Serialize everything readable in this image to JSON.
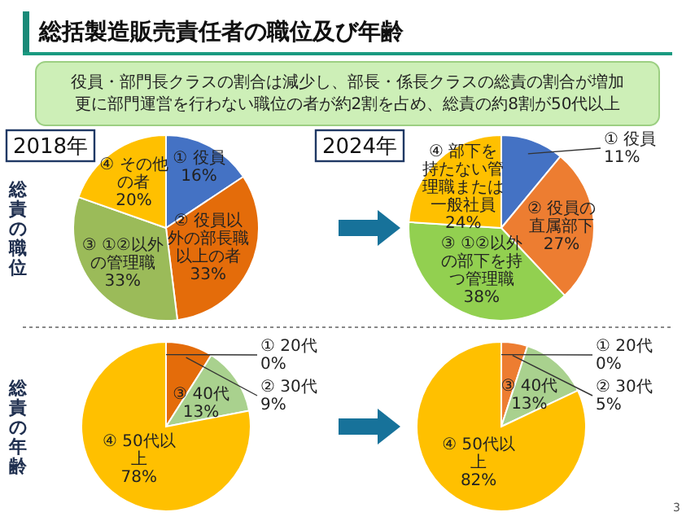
{
  "chart_data": [
    {
      "type": "pie",
      "title": "2018年",
      "ylabel": "総責の職位",
      "annotations": [
        "総括製造販売責任者の職位及び年齢",
        "役員・部門長クラスの割合は減少し、部長・係長クラスの総責の割合が増加",
        "更に部門運営を行わない職位の者が約2割を占め、総責の約8割が50代以上"
      ],
      "categories": [
        "① 役員",
        "② 役員以外の部長職以上の者",
        "③ ①②以外の管理職",
        "④ その他の者"
      ],
      "values": [
        16,
        33,
        33,
        20
      ],
      "value_labels": [
        "16%",
        "33%",
        "33%",
        "20%"
      ],
      "colors": [
        "#4472c4",
        "#e46c0a",
        "#9bbb59",
        "#ffc000"
      ]
    },
    {
      "type": "pie",
      "title": "2024年",
      "categories": [
        "① 役員",
        "② 役員の直属部下",
        "③ ①②以外の部下を持つ管理職",
        "④ 部下を持たない管理職または一般社員"
      ],
      "values": [
        11,
        27,
        38,
        24
      ],
      "value_labels": [
        "11%",
        "27%",
        "38%",
        "24%"
      ],
      "colors": [
        "#4472c4",
        "#ed7d31",
        "#92d050",
        "#ffc000"
      ]
    },
    {
      "type": "pie",
      "ylabel": "総責の年齢",
      "categories": [
        "① 20代",
        "② 30代",
        "③ 40代",
        "④ 50代以上"
      ],
      "values": [
        0,
        9,
        13,
        78
      ],
      "value_labels": [
        "0%",
        "9%",
        "13%",
        "78%"
      ],
      "colors": [
        "#4472c4",
        "#e46c0a",
        "#a9d18e",
        "#ffc000"
      ]
    },
    {
      "type": "pie",
      "annotations": [
        "3"
      ],
      "categories": [
        "① 20代",
        "② 30代",
        "③ 40代",
        "④ 50代以上"
      ],
      "values": [
        0,
        5,
        13,
        82
      ],
      "value_labels": [
        "0%",
        "5%",
        "13%",
        "82%"
      ],
      "colors": [
        "#4472c4",
        "#ed7d31",
        "#a9d18e",
        "#ffc000"
      ]
    }
  ]
}
